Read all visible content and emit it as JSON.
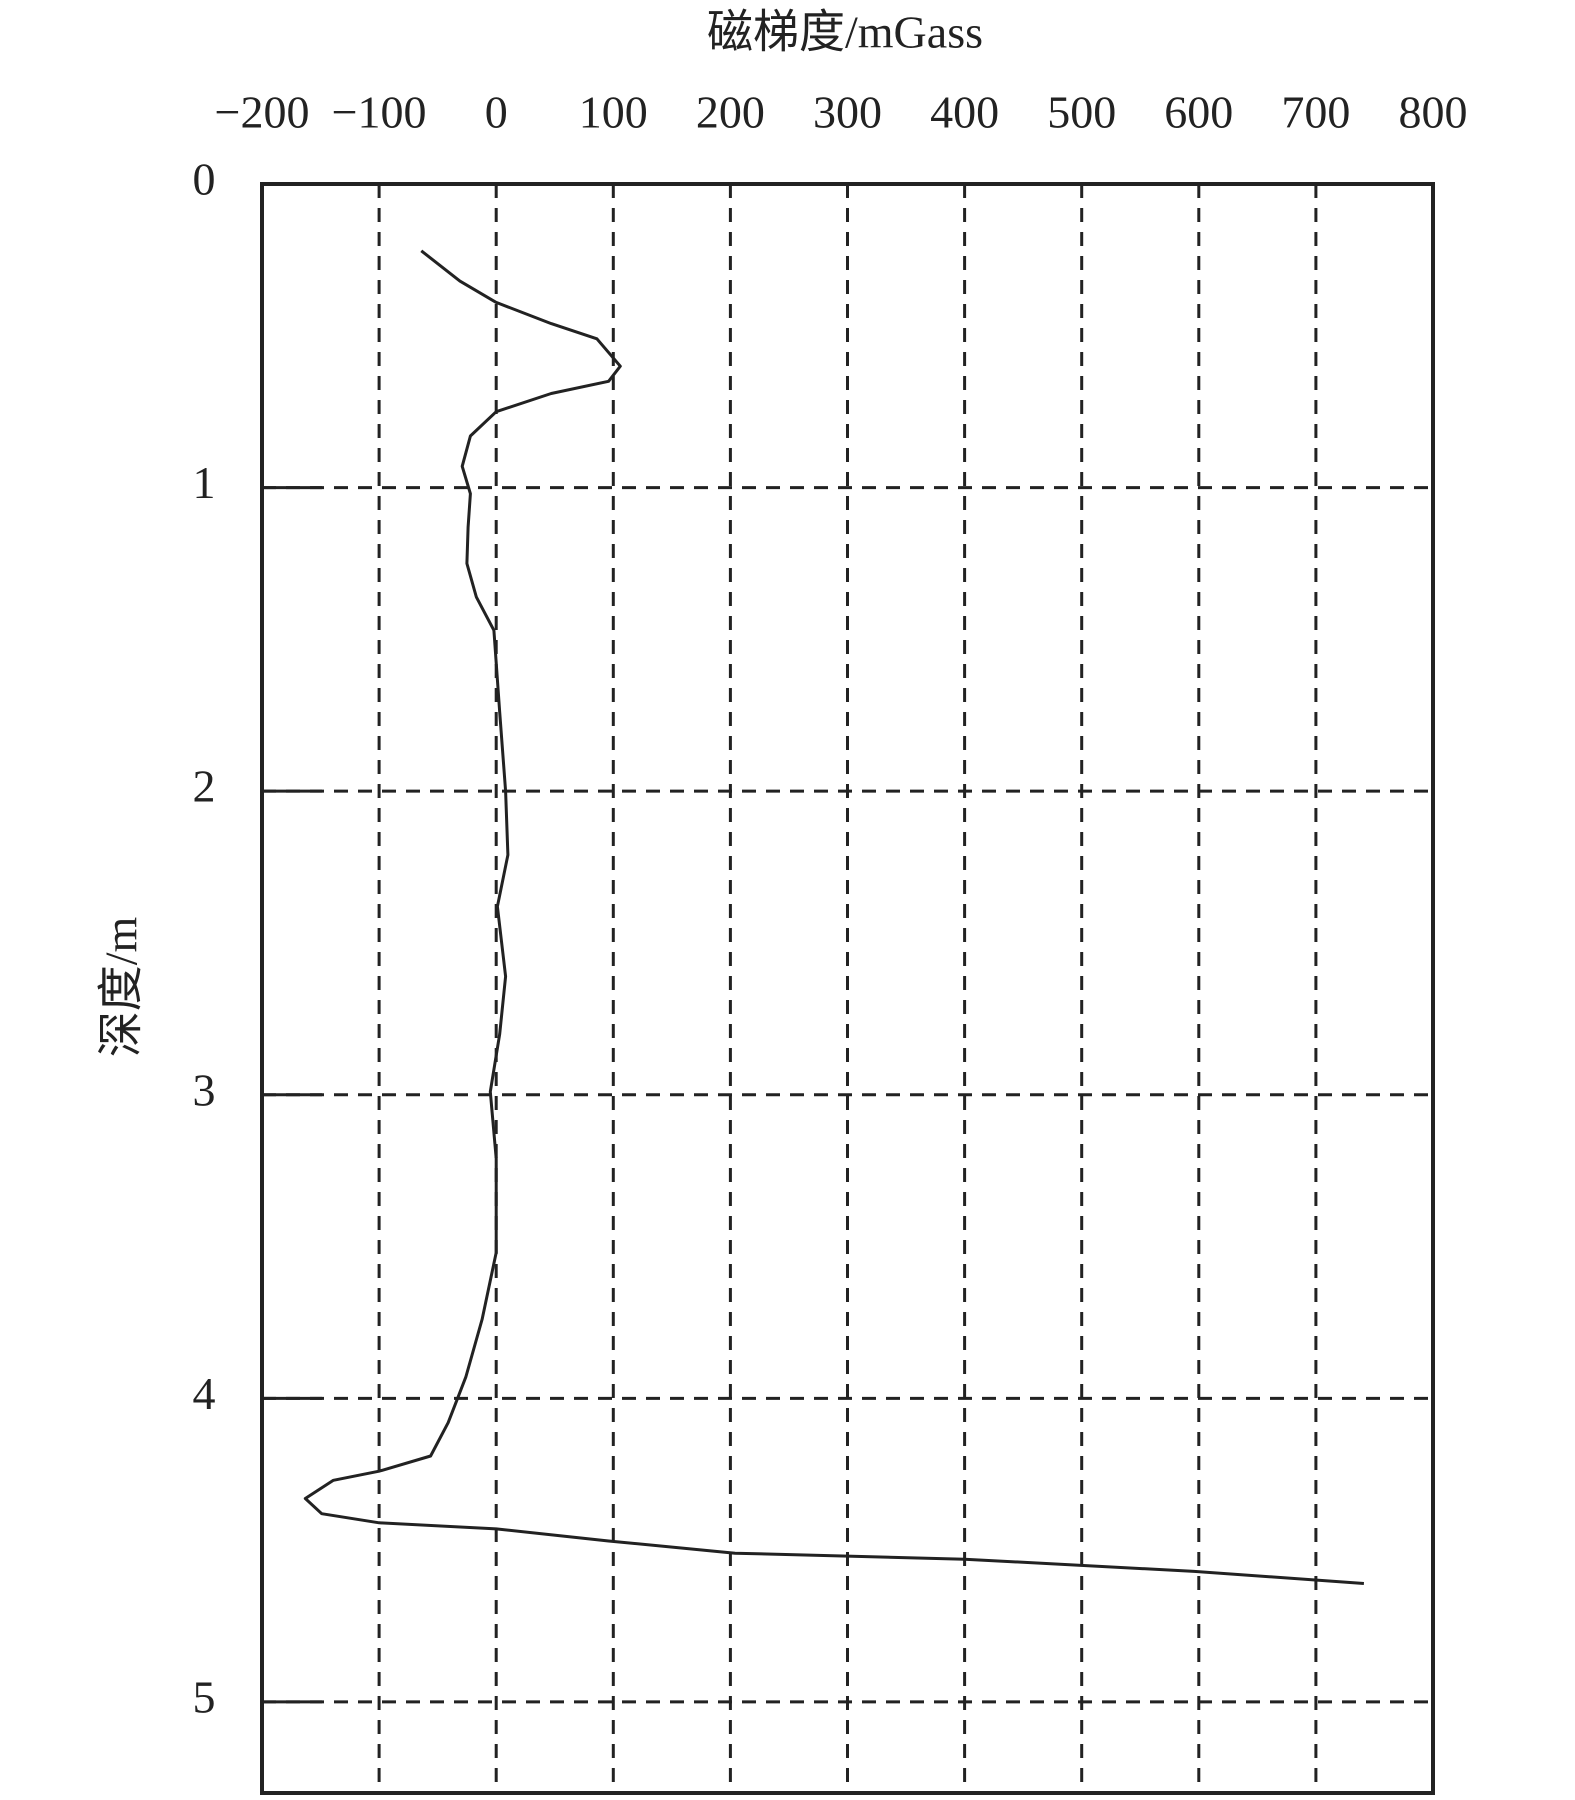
{
  "chart_data": {
    "type": "line",
    "x_label": "磁梯度/mGass",
    "y_label": "深度/m",
    "xlim": [
      -200,
      800
    ],
    "xticks": [
      {
        "value": -200,
        "label": "−200"
      },
      {
        "value": -100,
        "label": "−100"
      },
      0,
      100,
      200,
      300,
      400,
      500,
      600,
      700,
      800
    ],
    "ylim": [
      0,
      5.3
    ],
    "yticks": [
      0,
      1,
      2,
      3,
      4,
      5
    ],
    "y_inverted": true,
    "grid": true,
    "color": "#222222",
    "x": [
      -64,
      -31,
      0,
      47,
      86,
      106,
      96,
      47,
      0,
      -22,
      -29,
      -22,
      -24,
      -25,
      -17,
      -2,
      3,
      8,
      10,
      1,
      8,
      3,
      -5,
      0,
      0,
      -12,
      -26,
      -41,
      -56,
      -100,
      -139,
      -163,
      -149,
      -100,
      0,
      96,
      204,
      400,
      596,
      741
    ],
    "values": [
      0.22,
      0.32,
      0.39,
      0.46,
      0.51,
      0.6,
      0.65,
      0.69,
      0.75,
      0.83,
      0.93,
      1.02,
      1.13,
      1.25,
      1.36,
      1.47,
      1.74,
      2.0,
      2.21,
      2.38,
      2.61,
      2.8,
      2.99,
      3.21,
      3.52,
      3.74,
      3.93,
      4.08,
      4.19,
      4.24,
      4.27,
      4.33,
      4.38,
      4.41,
      4.43,
      4.47,
      4.51,
      4.53,
      4.57,
      4.61
    ]
  }
}
